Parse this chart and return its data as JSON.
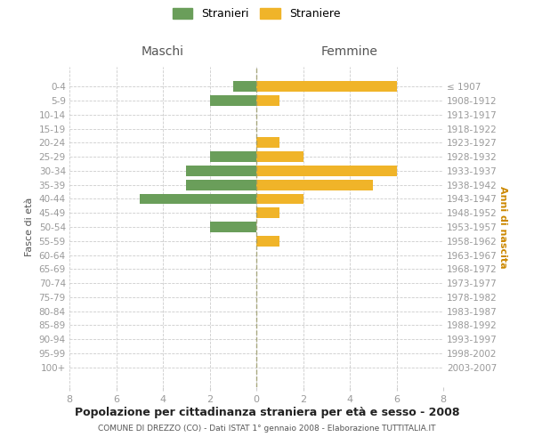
{
  "age_groups": [
    "0-4",
    "5-9",
    "10-14",
    "15-19",
    "20-24",
    "25-29",
    "30-34",
    "35-39",
    "40-44",
    "45-49",
    "50-54",
    "55-59",
    "60-64",
    "65-69",
    "70-74",
    "75-79",
    "80-84",
    "85-89",
    "90-94",
    "95-99",
    "100+"
  ],
  "birth_years": [
    "2003-2007",
    "1998-2002",
    "1993-1997",
    "1988-1992",
    "1983-1987",
    "1978-1982",
    "1973-1977",
    "1968-1972",
    "1963-1967",
    "1958-1962",
    "1953-1957",
    "1948-1952",
    "1943-1947",
    "1938-1942",
    "1933-1937",
    "1928-1932",
    "1923-1927",
    "1918-1922",
    "1913-1917",
    "1908-1912",
    "≤ 1907"
  ],
  "maschi": [
    1,
    2,
    0,
    0,
    0,
    2,
    3,
    3,
    5,
    0,
    2,
    0,
    0,
    0,
    0,
    0,
    0,
    0,
    0,
    0,
    0
  ],
  "femmine": [
    6,
    1,
    0,
    0,
    1,
    2,
    6,
    5,
    2,
    1,
    0,
    1,
    0,
    0,
    0,
    0,
    0,
    0,
    0,
    0,
    0
  ],
  "color_maschi": "#6a9e5a",
  "color_femmine": "#f0b429",
  "title_main": "Popolazione per cittadinanza straniera per età e sesso - 2008",
  "title_sub": "COMUNE DI DREZZO (CO) - Dati ISTAT 1° gennaio 2008 - Elaborazione TUTTITALIA.IT",
  "label_maschi": "Stranieri",
  "label_femmine": "Straniere",
  "header_left": "Maschi",
  "header_right": "Femmine",
  "ylabel_left": "Fasce di età",
  "ylabel_right": "Anni di nascita",
  "xlim": 8,
  "bg_color": "#ffffff",
  "grid_color": "#cccccc",
  "tick_color": "#999999",
  "center_line_color": "#999966"
}
